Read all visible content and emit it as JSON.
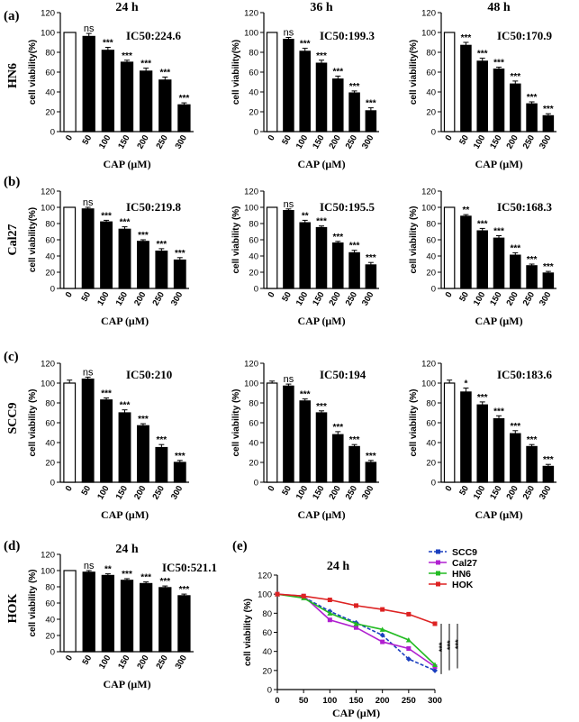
{
  "panel_labels": [
    "(a)",
    "(b)",
    "(c)",
    "(d)",
    "(e)"
  ],
  "row_labels": [
    "HN6",
    "Cal27",
    "SCC9",
    "HOK"
  ],
  "chart_data": [
    {
      "type": "bar",
      "panel": "a",
      "row_label": "HN6",
      "title": "24 h",
      "ic50": "IC50:224.6",
      "ylabel": "cell viability(%)",
      "xlabel": "CAP (μM)",
      "categories": [
        "0",
        "50",
        "100",
        "150",
        "200",
        "250",
        "300"
      ],
      "values": [
        100,
        96,
        82,
        70,
        61,
        52,
        27
      ],
      "errors": [
        0,
        3,
        3,
        2,
        3,
        3,
        2
      ],
      "significance": [
        "",
        "ns",
        "***",
        "***",
        "***",
        "***",
        "***"
      ],
      "ylim": [
        0,
        120
      ],
      "yticks": [
        0,
        20,
        40,
        60,
        80,
        100,
        120
      ]
    },
    {
      "type": "bar",
      "panel": "a",
      "row_label": "HN6",
      "title": "36 h",
      "ic50": "IC50:199.3",
      "ylabel": "cell viability(%)",
      "xlabel": "CAP (μM)",
      "categories": [
        "0",
        "50",
        "100",
        "150",
        "200",
        "250",
        "300"
      ],
      "values": [
        100,
        93,
        81,
        69,
        53,
        39,
        21
      ],
      "errors": [
        0,
        2,
        3,
        3,
        3,
        2,
        3
      ],
      "significance": [
        "",
        "ns",
        "***",
        "***",
        "***",
        "***",
        "***"
      ],
      "ylim": [
        0,
        120
      ],
      "yticks": [
        0,
        20,
        40,
        60,
        80,
        100,
        120
      ]
    },
    {
      "type": "bar",
      "panel": "a",
      "row_label": "HN6",
      "title": "48 h",
      "ic50": "IC50:170.9",
      "ylabel": "cell viability(%)",
      "xlabel": "CAP (μM)",
      "categories": [
        "0",
        "50",
        "100",
        "150",
        "200",
        "250",
        "300"
      ],
      "values": [
        100,
        87,
        71,
        63,
        48,
        28,
        16
      ],
      "errors": [
        0,
        3,
        3,
        2,
        3,
        2,
        2
      ],
      "significance": [
        "",
        "***",
        "***",
        "***",
        "***",
        "***",
        "***"
      ],
      "ylim": [
        0,
        120
      ],
      "yticks": [
        0,
        20,
        40,
        60,
        80,
        100,
        120
      ]
    },
    {
      "type": "bar",
      "panel": "b",
      "row_label": "Cal27",
      "title": "",
      "ic50": "IC50:219.8",
      "ylabel": "cell viability(%)",
      "xlabel": "CAP (μM)",
      "categories": [
        "0",
        "50",
        "100",
        "150",
        "200",
        "250",
        "300"
      ],
      "values": [
        100,
        98,
        82,
        73,
        58,
        46,
        35
      ],
      "errors": [
        0,
        2,
        2,
        3,
        2,
        3,
        3
      ],
      "significance": [
        "",
        "ns",
        "***",
        "***",
        "***",
        "***",
        "***"
      ],
      "ylim": [
        0,
        120
      ],
      "yticks": [
        0,
        20,
        40,
        60,
        80,
        100,
        120
      ]
    },
    {
      "type": "bar",
      "panel": "b",
      "row_label": "Cal27",
      "title": "",
      "ic50": "IC50:195.5",
      "ylabel": "cell viability (%)",
      "xlabel": "CAP (μM)",
      "categories": [
        "0",
        "50",
        "100",
        "150",
        "200",
        "250",
        "300"
      ],
      "values": [
        100,
        96,
        81,
        75,
        56,
        44,
        29
      ],
      "errors": [
        0,
        2,
        3,
        2,
        2,
        3,
        3
      ],
      "significance": [
        "",
        "ns",
        "**",
        "***",
        "***",
        "***",
        "***"
      ],
      "ylim": [
        0,
        120
      ],
      "yticks": [
        0,
        20,
        40,
        60,
        80,
        100,
        120
      ]
    },
    {
      "type": "bar",
      "panel": "b",
      "row_label": "Cal27",
      "title": "",
      "ic50": "IC50:168.3",
      "ylabel": "cell viability (%)",
      "xlabel": "CAP (μM)",
      "categories": [
        "0",
        "50",
        "100",
        "150",
        "200",
        "250",
        "300"
      ],
      "values": [
        100,
        89,
        71,
        62,
        41,
        28,
        19
      ],
      "errors": [
        0,
        2,
        3,
        3,
        3,
        2,
        2
      ],
      "significance": [
        "",
        "**",
        "***",
        "***",
        "***",
        "***",
        "***"
      ],
      "ylim": [
        0,
        120
      ],
      "yticks": [
        0,
        20,
        40,
        60,
        80,
        100,
        120
      ]
    },
    {
      "type": "bar",
      "panel": "c",
      "row_label": "SCC9",
      "title": "",
      "ic50": "IC50:210",
      "ylabel": "cell viability (%)",
      "xlabel": "CAP (μM)",
      "categories": [
        "0",
        "50",
        "100",
        "150",
        "200",
        "250",
        "300"
      ],
      "values": [
        100,
        104,
        83,
        70,
        57,
        35,
        20
      ],
      "errors": [
        3,
        2,
        2,
        3,
        2,
        3,
        2
      ],
      "significance": [
        "",
        "ns",
        "***",
        "***",
        "***",
        "***",
        "***"
      ],
      "ylim": [
        0,
        120
      ],
      "yticks": [
        0,
        20,
        40,
        60,
        80,
        100,
        120
      ]
    },
    {
      "type": "bar",
      "panel": "c",
      "row_label": "SCC9",
      "title": "",
      "ic50": "IC50:194",
      "ylabel": "cell viability (%)",
      "xlabel": "CAP (μM)",
      "categories": [
        "0",
        "50",
        "100",
        "150",
        "200",
        "250",
        "300"
      ],
      "values": [
        100,
        97,
        82,
        70,
        48,
        36,
        20
      ],
      "errors": [
        2,
        2,
        2,
        2,
        3,
        2,
        2
      ],
      "significance": [
        "",
        "ns",
        "***",
        "***",
        "***",
        "***",
        "***"
      ],
      "ylim": [
        0,
        120
      ],
      "yticks": [
        0,
        20,
        40,
        60,
        80,
        100,
        120
      ]
    },
    {
      "type": "bar",
      "panel": "c",
      "row_label": "SCC9",
      "title": "",
      "ic50": "IC50:183.6",
      "ylabel": "cell viability (%)",
      "xlabel": "CAP (μM)",
      "categories": [
        "0",
        "50",
        "100",
        "150",
        "200",
        "250",
        "300"
      ],
      "values": [
        100,
        91,
        78,
        64,
        49,
        36,
        16
      ],
      "errors": [
        3,
        4,
        3,
        3,
        3,
        2,
        2
      ],
      "significance": [
        "",
        "*",
        "***",
        "***",
        "***",
        "***",
        "***"
      ],
      "ylim": [
        0,
        120
      ],
      "yticks": [
        0,
        20,
        40,
        60,
        80,
        100,
        120
      ]
    },
    {
      "type": "bar",
      "panel": "d",
      "row_label": "HOK",
      "title": "24 h",
      "ic50": "IC50:521.1",
      "ylabel": "cell viability (%)",
      "xlabel": "CAP (μM)",
      "categories": [
        "0",
        "50",
        "100",
        "150",
        "200",
        "250",
        "300"
      ],
      "values": [
        100,
        98,
        94,
        88,
        84,
        79,
        69
      ],
      "errors": [
        0,
        2,
        2,
        2,
        2,
        2,
        2
      ],
      "significance": [
        "",
        "ns",
        "**",
        "***",
        "***",
        "***",
        "***"
      ],
      "ylim": [
        0,
        120
      ],
      "yticks": [
        0,
        20,
        40,
        60,
        80,
        100,
        120
      ]
    },
    {
      "type": "line",
      "panel": "e",
      "title": "24 h",
      "ylabel": "cell viability (%)",
      "xlabel": "CAP (μM)",
      "x": [
        0,
        50,
        100,
        150,
        200,
        250,
        300
      ],
      "xlim": [
        0,
        300
      ],
      "ylim": [
        0,
        120
      ],
      "yticks": [
        0,
        20,
        40,
        60,
        80,
        100,
        120
      ],
      "xticks": [
        0,
        50,
        100,
        150,
        200,
        250,
        300
      ],
      "series": [
        {
          "name": "SCC9",
          "color": "#1a3fbf",
          "marker": "diamond",
          "dashed": true,
          "values": [
            100,
            97,
            82,
            70,
            57,
            32,
            20
          ]
        },
        {
          "name": "Cal27",
          "color": "#b020d0",
          "marker": "square",
          "dashed": false,
          "values": [
            100,
            98,
            73,
            65,
            50,
            43,
            24
          ]
        },
        {
          "name": "HN6",
          "color": "#22bb22",
          "marker": "triangle",
          "dashed": false,
          "values": [
            100,
            96,
            80,
            69,
            63,
            52,
            26
          ]
        },
        {
          "name": "HOK",
          "color": "#dd2222",
          "marker": "square",
          "dashed": false,
          "values": [
            100,
            98,
            94,
            88,
            84,
            79,
            69
          ]
        }
      ],
      "significance": [
        "***",
        "***",
        "***"
      ]
    }
  ]
}
